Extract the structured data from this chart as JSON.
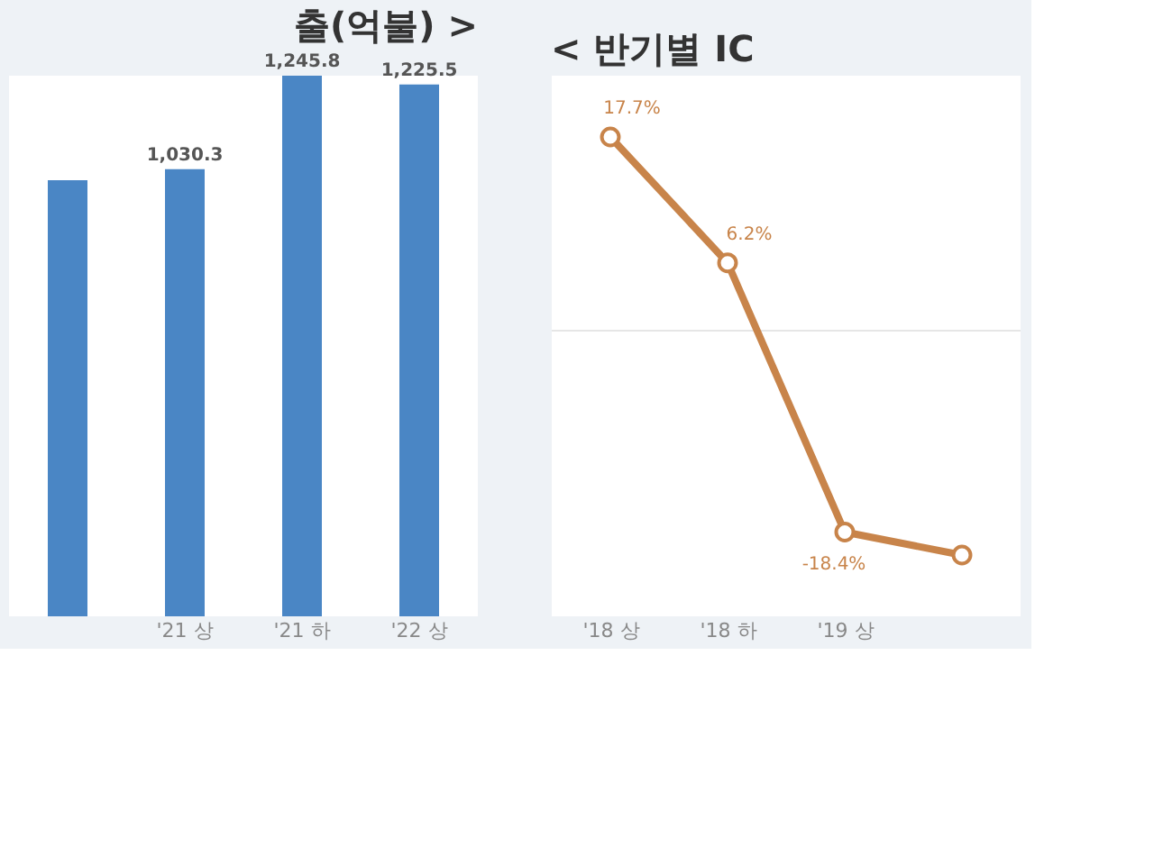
{
  "chart_data": [
    {
      "type": "bar",
      "title": "출(억불) >",
      "categories": [
        null,
        "'21 상",
        "'21 하",
        "'22 상"
      ],
      "values": [
        1005,
        1030.3,
        1245.8,
        1225.5
      ],
      "color": "#4a86c5",
      "value_labels": [
        null,
        "1,030.3",
        "1,245.8",
        "1,225.5"
      ],
      "grid": false
    },
    {
      "type": "line",
      "title": "< 반기별 IC",
      "categories": [
        "'18 상",
        "'18 하",
        "'19 상",
        null
      ],
      "values": [
        17.7,
        6.2,
        -18.4,
        -20.5
      ],
      "color": "#c8844a",
      "marker": "circle",
      "line_style": "solid",
      "value_labels": [
        "17.7%",
        "6.2%",
        "-18.4%",
        null
      ],
      "ref_lines": [
        {
          "axis": "y",
          "value": 0,
          "color": "#e6e6e6"
        }
      ],
      "grid": false
    }
  ]
}
